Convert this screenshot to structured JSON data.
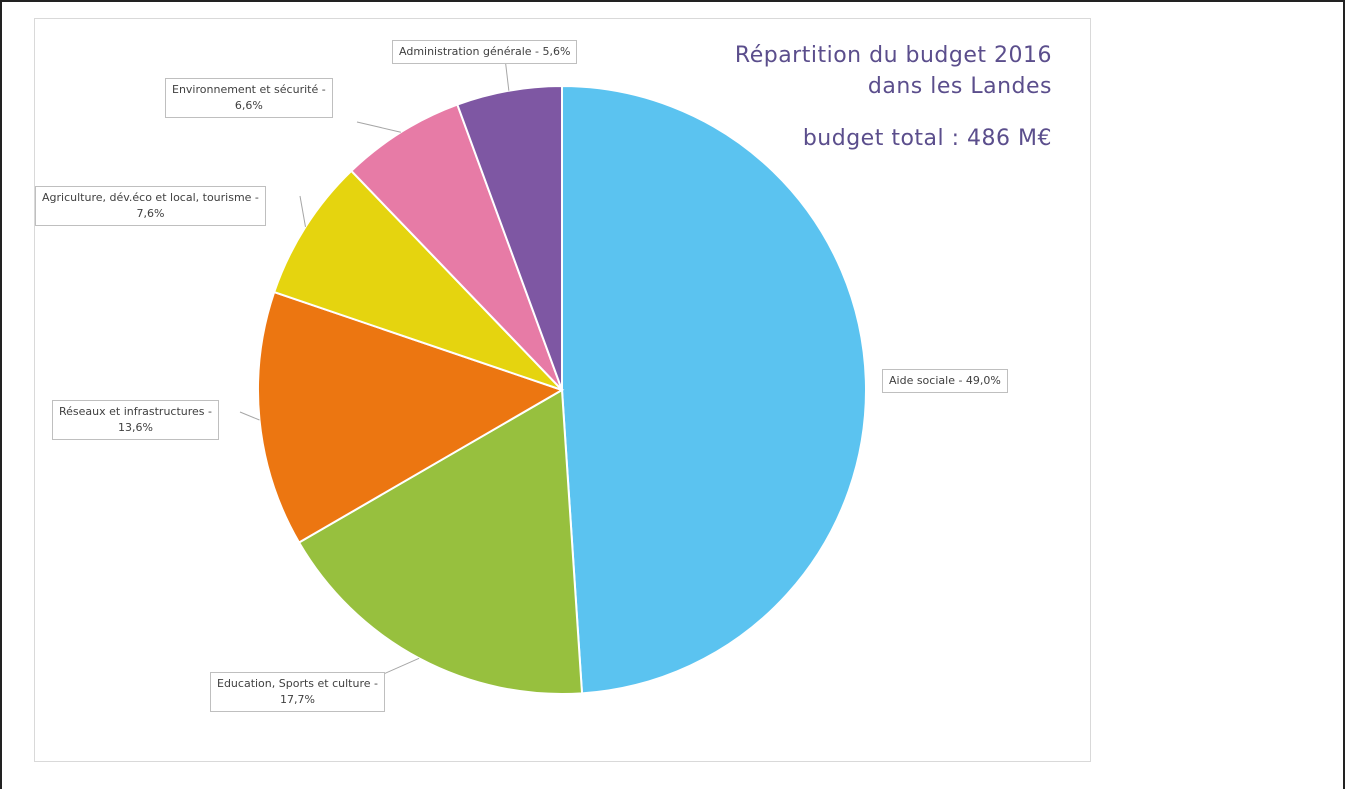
{
  "title_lines": [
    "Répartition du budget 2016",
    "dans les Landes"
  ],
  "total_label": "budget total : 486 M€",
  "chart_data": {
    "type": "pie",
    "title": "Répartition du budget 2016 dans les Landes",
    "subtitle": "budget total : 486 M€",
    "slices": [
      {
        "name": "Aide sociale",
        "value": 49.0,
        "color": "#5BC3F0",
        "label_lines": [
          "Aide sociale - 49,0%"
        ]
      },
      {
        "name": "Education, Sports et culture",
        "value": 17.7,
        "color": "#97C03E",
        "label_lines": [
          "Education, Sports et culture -",
          "17,7%"
        ]
      },
      {
        "name": "Réseaux et infrastructures",
        "value": 13.6,
        "color": "#EC7611",
        "label_lines": [
          "Réseaux et infrastructures -",
          "13,6%"
        ]
      },
      {
        "name": "Agriculture, dév.éco et local, tourisme",
        "value": 7.6,
        "color": "#E5D40F",
        "label_lines": [
          "Agriculture, dév.éco et local, tourisme -",
          "7,6%"
        ]
      },
      {
        "name": "Environnement et sécurité",
        "value": 6.6,
        "color": "#E77BA6",
        "label_lines": [
          "Environnement et sécurité -",
          "6,6%"
        ]
      },
      {
        "name": "Administration générale",
        "value": 5.6,
        "color": "#7E57A3",
        "label_lines": [
          "Administration générale - 5,6%"
        ]
      }
    ]
  }
}
